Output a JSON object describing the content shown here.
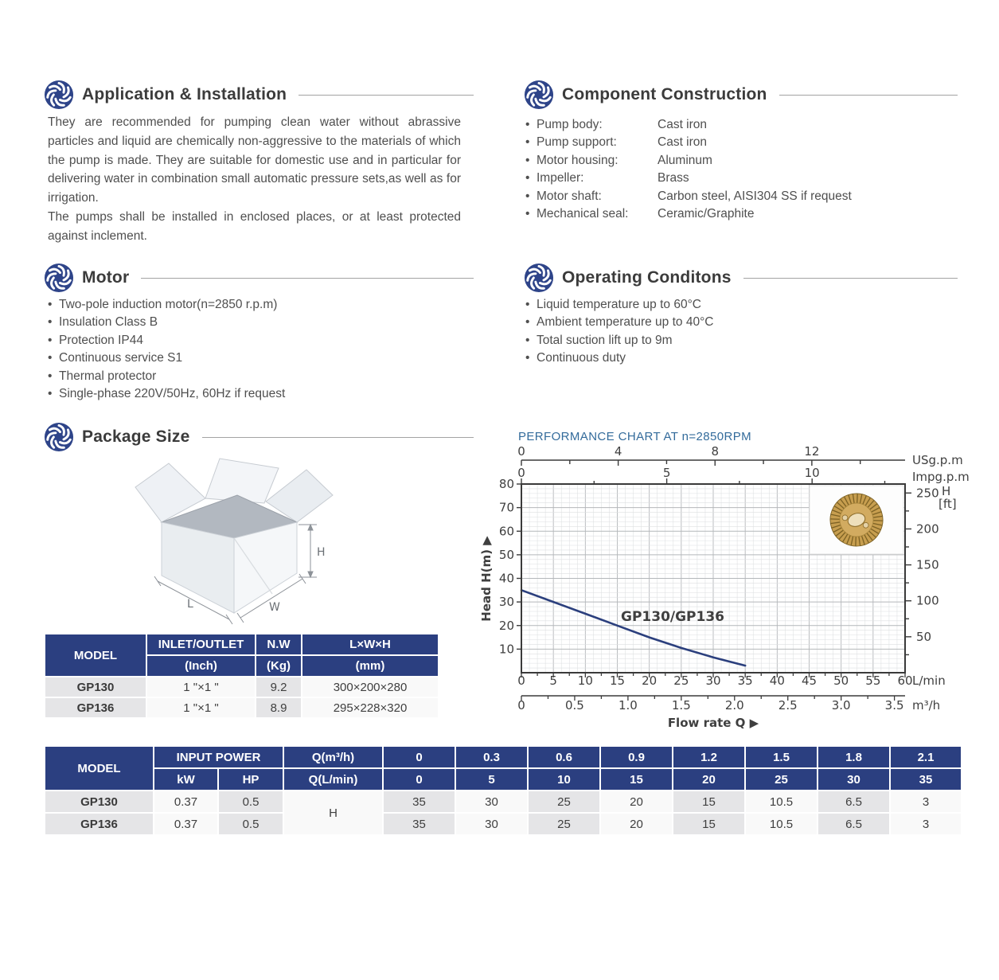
{
  "colors": {
    "navy_header": "#2b3f80",
    "logo_navy": "#2e4489",
    "chart_title_blue": "#336b9b",
    "curve_navy": "#2b3f7d",
    "cell_gray": "#e5e5e7",
    "cell_white": "#f9f9f9",
    "heading_text": "#3b3b3b",
    "body_text": "#4f4f4f"
  },
  "sections": {
    "application": {
      "title": "Application & Installation",
      "paragraphs": [
        "They are recommended for pumping clean water without abrassive particles and liquid are chemically non-aggressive to the materials of which the pump is made. They are suitable for domestic use and in particular for delivering water in combination small automatic pressure sets,as well as for irrigation.",
        "The pumps shall be installed in enclosed places, or at least protected against inclement."
      ]
    },
    "construction": {
      "title": "Component Construction",
      "items": [
        {
          "label": "Pump body:",
          "value": "Cast iron"
        },
        {
          "label": "Pump support:",
          "value": "Cast iron"
        },
        {
          "label": "Motor housing:",
          "value": "Aluminum"
        },
        {
          "label": "Impeller:",
          "value": "Brass"
        },
        {
          "label": "Motor shaft:",
          "value": "Carbon steel, AISI304 SS if request"
        },
        {
          "label": "Mechanical seal:",
          "value": "Ceramic/Graphite"
        }
      ]
    },
    "motor": {
      "title": "Motor",
      "items": [
        "Two-pole induction motor(n=2850 r.p.m)",
        "Insulation Class B",
        "Protection IP44",
        "Continuous service S1",
        "Thermal protector",
        "Single-phase 220V/50Hz, 60Hz if request"
      ]
    },
    "operating": {
      "title": "Operating Conditons",
      "items": [
        "Liquid temperature up to 60°C",
        "Ambient temperature up to 40°C",
        "Total suction lift up to 9m",
        "Continuous duty"
      ]
    },
    "package": {
      "title": "Package Size",
      "dim_h": "H",
      "dim_l": "L",
      "dim_w": "W",
      "table": {
        "col_model": "MODEL",
        "col_inlet": "INLET/OUTLET",
        "col_inlet_unit": "(Inch)",
        "col_nw": "N.W",
        "col_nw_unit": "(Kg)",
        "col_lwh": "L×W×H",
        "col_lwh_unit": "(mm)",
        "rows": [
          [
            "GP130",
            "1 \"×1 \"",
            "9.2",
            "300×200×280"
          ],
          [
            "GP136",
            "1 \"×1 \"",
            "8.9",
            "295×228×320"
          ]
        ]
      }
    }
  },
  "performance": {
    "title": "PERFORMANCE CHART AT n=2850RPM",
    "table": {
      "col_model": "MODEL",
      "col_input_power": "INPUT POWER",
      "col_kw": "kW",
      "col_hp": "HP",
      "row_q_m3h": "Q(m³/h)",
      "row_q_lmin": "Q(L/min)",
      "h_row_label": "H",
      "q_m3h": [
        "0",
        "0.3",
        "0.6",
        "0.9",
        "1.2",
        "1.5",
        "1.8",
        "2.1"
      ],
      "q_lmin": [
        "0",
        "5",
        "10",
        "15",
        "20",
        "25",
        "30",
        "35"
      ],
      "rows": [
        {
          "model": "GP130",
          "kw": "0.37",
          "hp": "0.5",
          "head": [
            "35",
            "30",
            "25",
            "20",
            "15",
            "10.5",
            "6.5",
            "3"
          ]
        },
        {
          "model": "GP136",
          "kw": "0.37",
          "hp": "0.5",
          "head": [
            "35",
            "30",
            "25",
            "20",
            "15",
            "10.5",
            "6.5",
            "3"
          ]
        }
      ]
    }
  },
  "chart_data": {
    "type": "line",
    "title": "PERFORMANCE CHART AT n=2850RPM",
    "curve_label": "GP130/GP136",
    "series": [
      {
        "name": "GP130/GP136",
        "x_lmin": [
          0,
          5,
          10,
          15,
          20,
          25,
          30,
          35
        ],
        "head_m": [
          35,
          30,
          25,
          20,
          15,
          10.5,
          6.5,
          3
        ]
      }
    ],
    "xlabel": "Flow rate Q",
    "xlim_lmin": [
      0,
      60
    ],
    "ylim_m": [
      0,
      80
    ],
    "grid": {
      "x_minor_lmin": 1.25,
      "x_major_lmin": 5,
      "y_minor_m": 2,
      "y_major_m": 10
    },
    "axes": {
      "top_usgpm": {
        "label": "USg.p.m",
        "tick_labels": [
          0,
          4,
          8,
          12
        ],
        "minor_step": 2,
        "max_units": 15,
        "lmin_per_unit": 3.785
      },
      "top_impgpm": {
        "label": "Impg.p.m",
        "tick_labels": [
          0,
          5,
          10
        ],
        "minor_step": 2.5,
        "max_units": 13,
        "lmin_per_unit": 4.546
      },
      "left_head_m": {
        "label": "Head H(m)",
        "tick_labels": [
          10,
          20,
          30,
          40,
          50,
          60,
          70,
          80
        ]
      },
      "right_head_ft": {
        "label_line1": "H",
        "label_line2": "[ft]",
        "tick_labels": [
          50,
          100,
          150,
          200,
          250
        ],
        "minor_step": 25,
        "m_per_ft": 0.3048
      },
      "bottom_lmin": {
        "label": "L/min",
        "tick_step": 5,
        "minor_step": 2.5
      },
      "bottom_m3h": {
        "label": "m³/h",
        "tick_labels": [
          "0",
          "0.5",
          "1.0",
          "1.5",
          "2.0",
          "2.5",
          "3.0",
          "3.5"
        ],
        "minor_step": 0.25,
        "lmin_per_unit": 16.6667
      }
    }
  }
}
